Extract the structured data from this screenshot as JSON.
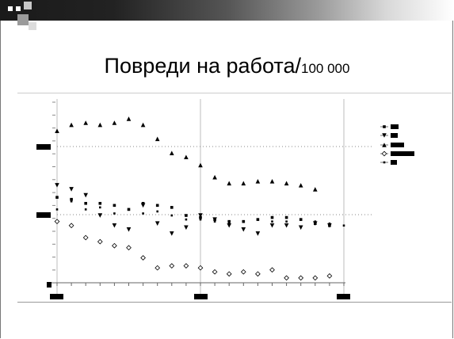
{
  "slide": {
    "title": "Повреди на работа/",
    "title_suffix": "100 000"
  },
  "colors": {
    "series": "#000000",
    "grid": "#bdbdbd",
    "header": "#1a1a1a"
  },
  "chart_data": {
    "type": "scatter",
    "title": "Повреди на работа/100 000",
    "x_count": 21,
    "grid": {
      "vertical_at": [
        0,
        10,
        20
      ],
      "horizontal_levels": [
        "upper",
        "middle"
      ]
    },
    "legend": "right",
    "series": [
      {
        "marker": "square",
        "values": [
          2100,
          2050,
          1950,
          1950,
          1900,
          1800,
          1950,
          1900,
          1850,
          1650,
          1600,
          1550,
          1500,
          1500,
          1550,
          1600,
          1600,
          1550,
          1450,
          1400,
          null
        ]
      },
      {
        "marker": "triangle-down",
        "values": [
          2400,
          2300,
          2150,
          1650,
          1400,
          1300,
          1900,
          1450,
          1200,
          1350,
          1650,
          1550,
          1400,
          1300,
          1200,
          1400,
          1400,
          1350,
          1450,
          1400,
          null
        ]
      },
      {
        "marker": "triangle-up",
        "values": [
          3750,
          3900,
          3950,
          3900,
          3950,
          4050,
          3900,
          3550,
          3200,
          3100,
          2900,
          2600,
          2450,
          2450,
          2500,
          2500,
          2450,
          2400,
          2300,
          null,
          null
        ]
      },
      {
        "marker": "diamond-open",
        "values": [
          1500,
          1400,
          1100,
          1000,
          900,
          850,
          600,
          350,
          400,
          400,
          350,
          250,
          200,
          250,
          200,
          300,
          100,
          100,
          100,
          150,
          null
        ]
      },
      {
        "marker": "small-square",
        "values": [
          1800,
          2000,
          1800,
          1850,
          1700,
          1800,
          1700,
          1750,
          1650,
          1550,
          1550,
          1500,
          1450,
          1500,
          1550,
          1500,
          1500,
          1550,
          1500,
          1450,
          1400
        ]
      }
    ]
  }
}
